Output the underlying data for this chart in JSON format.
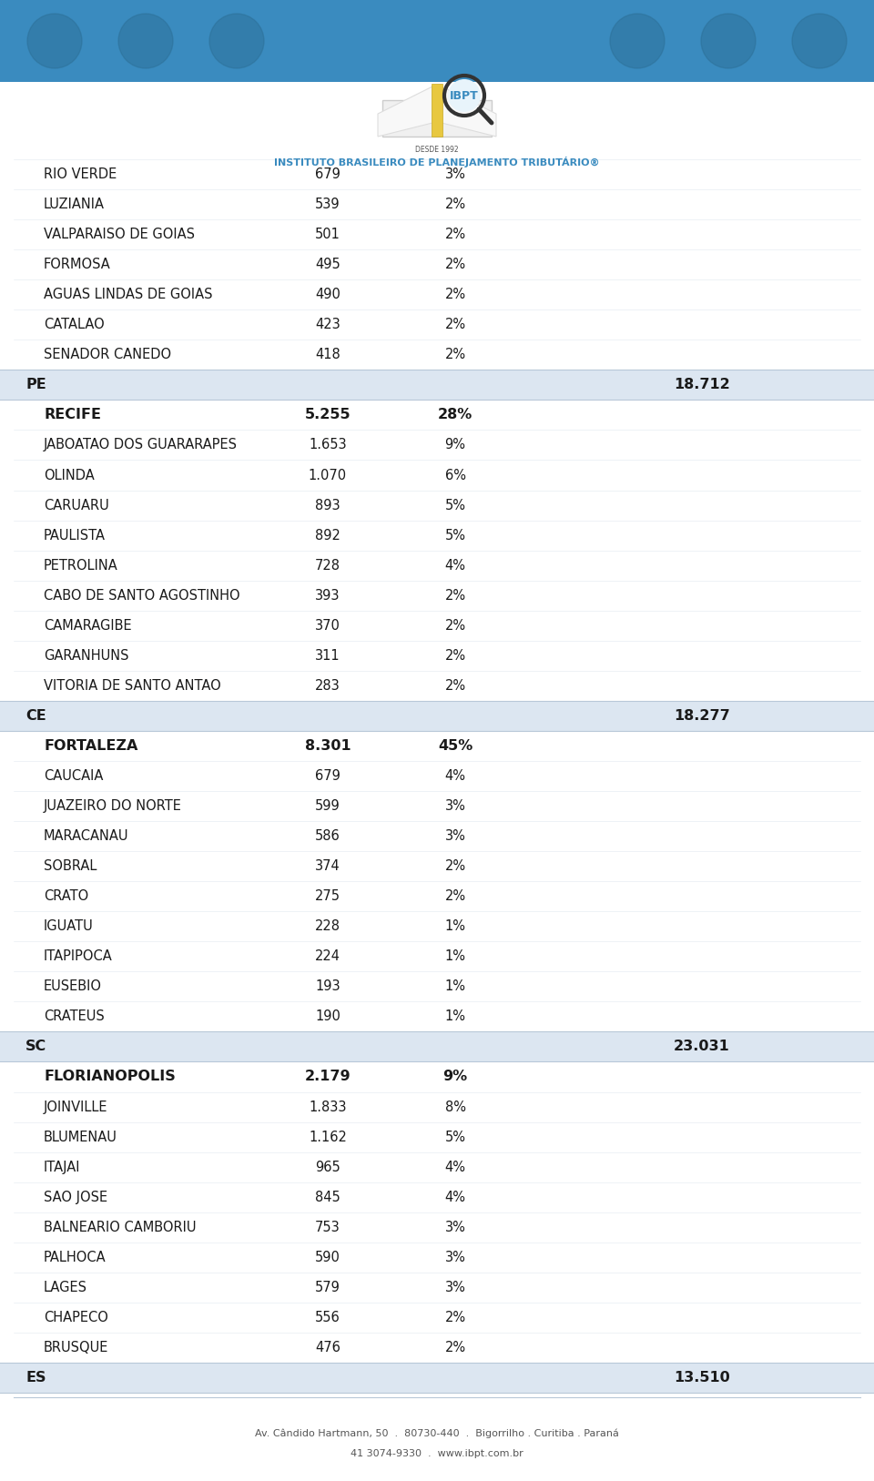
{
  "header_color": "#3a8bbf",
  "section_bg_color": "#dce6f1",
  "white_bg": "#ffffff",
  "text_color": "#1a1a1a",
  "footer_line1": "Av. Cândido Hartmann, 50  .  80730-440  .  Bigorrilho . Curitiba . Paraná",
  "footer_line2": "41 3074-9330  .  www.ibpt.com.br",
  "rows": [
    {
      "city": "RIO VERDE",
      "value": "679",
      "pct": "3%",
      "bold": false,
      "section": null,
      "is_section_row": false
    },
    {
      "city": "LUZIANIA",
      "value": "539",
      "pct": "2%",
      "bold": false,
      "section": null,
      "is_section_row": false
    },
    {
      "city": "VALPARAISO DE GOIAS",
      "value": "501",
      "pct": "2%",
      "bold": false,
      "section": null,
      "is_section_row": false
    },
    {
      "city": "FORMOSA",
      "value": "495",
      "pct": "2%",
      "bold": false,
      "section": null,
      "is_section_row": false
    },
    {
      "city": "AGUAS LINDAS DE GOIAS",
      "value": "490",
      "pct": "2%",
      "bold": false,
      "section": null,
      "is_section_row": false
    },
    {
      "city": "CATALAO",
      "value": "423",
      "pct": "2%",
      "bold": false,
      "section": null,
      "is_section_row": false
    },
    {
      "city": "SENADOR CANEDO",
      "value": "418",
      "pct": "2%",
      "bold": false,
      "section": null,
      "is_section_row": false
    },
    {
      "city": "PE",
      "value": "",
      "pct": "",
      "bold": true,
      "section": "18.712",
      "is_section_row": true
    },
    {
      "city": "RECIFE",
      "value": "5.255",
      "pct": "28%",
      "bold": true,
      "section": null,
      "is_section_row": false
    },
    {
      "city": "JABOATAO DOS GUARARAPES",
      "value": "1.653",
      "pct": "9%",
      "bold": false,
      "section": null,
      "is_section_row": false
    },
    {
      "city": "OLINDA",
      "value": "1.070",
      "pct": "6%",
      "bold": false,
      "section": null,
      "is_section_row": false
    },
    {
      "city": "CARUARU",
      "value": "893",
      "pct": "5%",
      "bold": false,
      "section": null,
      "is_section_row": false
    },
    {
      "city": "PAULISTA",
      "value": "892",
      "pct": "5%",
      "bold": false,
      "section": null,
      "is_section_row": false
    },
    {
      "city": "PETROLINA",
      "value": "728",
      "pct": "4%",
      "bold": false,
      "section": null,
      "is_section_row": false
    },
    {
      "city": "CABO DE SANTO AGOSTINHO",
      "value": "393",
      "pct": "2%",
      "bold": false,
      "section": null,
      "is_section_row": false
    },
    {
      "city": "CAMARAGIBE",
      "value": "370",
      "pct": "2%",
      "bold": false,
      "section": null,
      "is_section_row": false
    },
    {
      "city": "GARANHUNS",
      "value": "311",
      "pct": "2%",
      "bold": false,
      "section": null,
      "is_section_row": false
    },
    {
      "city": "VITORIA DE SANTO ANTAO",
      "value": "283",
      "pct": "2%",
      "bold": false,
      "section": null,
      "is_section_row": false
    },
    {
      "city": "CE",
      "value": "",
      "pct": "",
      "bold": true,
      "section": "18.277",
      "is_section_row": true
    },
    {
      "city": "FORTALEZA",
      "value": "8.301",
      "pct": "45%",
      "bold": true,
      "section": null,
      "is_section_row": false
    },
    {
      "city": "CAUCAIA",
      "value": "679",
      "pct": "4%",
      "bold": false,
      "section": null,
      "is_section_row": false
    },
    {
      "city": "JUAZEIRO DO NORTE",
      "value": "599",
      "pct": "3%",
      "bold": false,
      "section": null,
      "is_section_row": false
    },
    {
      "city": "MARACANAU",
      "value": "586",
      "pct": "3%",
      "bold": false,
      "section": null,
      "is_section_row": false
    },
    {
      "city": "SOBRAL",
      "value": "374",
      "pct": "2%",
      "bold": false,
      "section": null,
      "is_section_row": false
    },
    {
      "city": "CRATO",
      "value": "275",
      "pct": "2%",
      "bold": false,
      "section": null,
      "is_section_row": false
    },
    {
      "city": "IGUATU",
      "value": "228",
      "pct": "1%",
      "bold": false,
      "section": null,
      "is_section_row": false
    },
    {
      "city": "ITAPIPOCA",
      "value": "224",
      "pct": "1%",
      "bold": false,
      "section": null,
      "is_section_row": false
    },
    {
      "city": "EUSEBIO",
      "value": "193",
      "pct": "1%",
      "bold": false,
      "section": null,
      "is_section_row": false
    },
    {
      "city": "CRATEUS",
      "value": "190",
      "pct": "1%",
      "bold": false,
      "section": null,
      "is_section_row": false
    },
    {
      "city": "SC",
      "value": "",
      "pct": "",
      "bold": true,
      "section": "23.031",
      "is_section_row": true
    },
    {
      "city": "FLORIANOPOLIS",
      "value": "2.179",
      "pct": "9%",
      "bold": true,
      "section": null,
      "is_section_row": false
    },
    {
      "city": "JOINVILLE",
      "value": "1.833",
      "pct": "8%",
      "bold": false,
      "section": null,
      "is_section_row": false
    },
    {
      "city": "BLUMENAU",
      "value": "1.162",
      "pct": "5%",
      "bold": false,
      "section": null,
      "is_section_row": false
    },
    {
      "city": "ITAJAI",
      "value": "965",
      "pct": "4%",
      "bold": false,
      "section": null,
      "is_section_row": false
    },
    {
      "city": "SAO JOSE",
      "value": "845",
      "pct": "4%",
      "bold": false,
      "section": null,
      "is_section_row": false
    },
    {
      "city": "BALNEARIO CAMBORIU",
      "value": "753",
      "pct": "3%",
      "bold": false,
      "section": null,
      "is_section_row": false
    },
    {
      "city": "PALHOCA",
      "value": "590",
      "pct": "3%",
      "bold": false,
      "section": null,
      "is_section_row": false
    },
    {
      "city": "LAGES",
      "value": "579",
      "pct": "3%",
      "bold": false,
      "section": null,
      "is_section_row": false
    },
    {
      "city": "CHAPECO",
      "value": "556",
      "pct": "2%",
      "bold": false,
      "section": null,
      "is_section_row": false
    },
    {
      "city": "BRUSQUE",
      "value": "476",
      "pct": "2%",
      "bold": false,
      "section": null,
      "is_section_row": false
    },
    {
      "city": "ES",
      "value": "",
      "pct": "",
      "bold": true,
      "section": "13.510",
      "is_section_row": true
    }
  ]
}
